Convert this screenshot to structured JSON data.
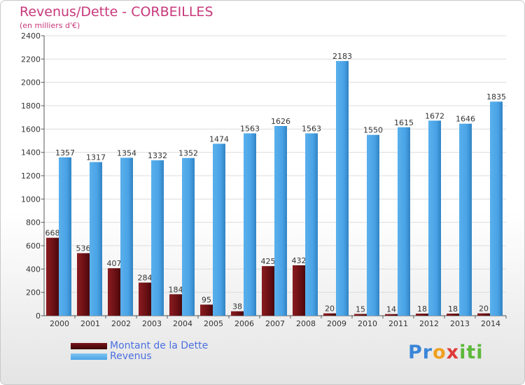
{
  "chart_data": {
    "type": "bar",
    "title": "Revenus/Dette - CORBEILLES",
    "subtitle": "(en milliers d'€)",
    "categories": [
      "2000",
      "2001",
      "2002",
      "2003",
      "2004",
      "2005",
      "2006",
      "2007",
      "2008",
      "2009",
      "2010",
      "2011",
      "2012",
      "2013",
      "2014"
    ],
    "series": [
      {
        "name": "Montant de la Dette",
        "color": "#7a1418",
        "values": [
          668,
          536,
          407,
          284,
          184,
          95,
          38,
          425,
          432,
          20,
          15,
          14,
          18,
          18,
          20
        ]
      },
      {
        "name": "Revenus",
        "color": "#4aa3e6",
        "values": [
          1357,
          1317,
          1354,
          1332,
          1352,
          1474,
          1563,
          1626,
          1563,
          2183,
          1550,
          1615,
          1672,
          1646,
          1835
        ]
      }
    ],
    "ylim": [
      0,
      2400
    ],
    "yticks": [
      0,
      200,
      400,
      600,
      800,
      1000,
      1200,
      1400,
      1600,
      1800,
      2000,
      2200,
      2400
    ],
    "grid": true,
    "legend_position": "bottom-left"
  },
  "logo": {
    "p1": "Pr",
    "p2": "o",
    "p3": "x",
    "p4": "iti"
  }
}
